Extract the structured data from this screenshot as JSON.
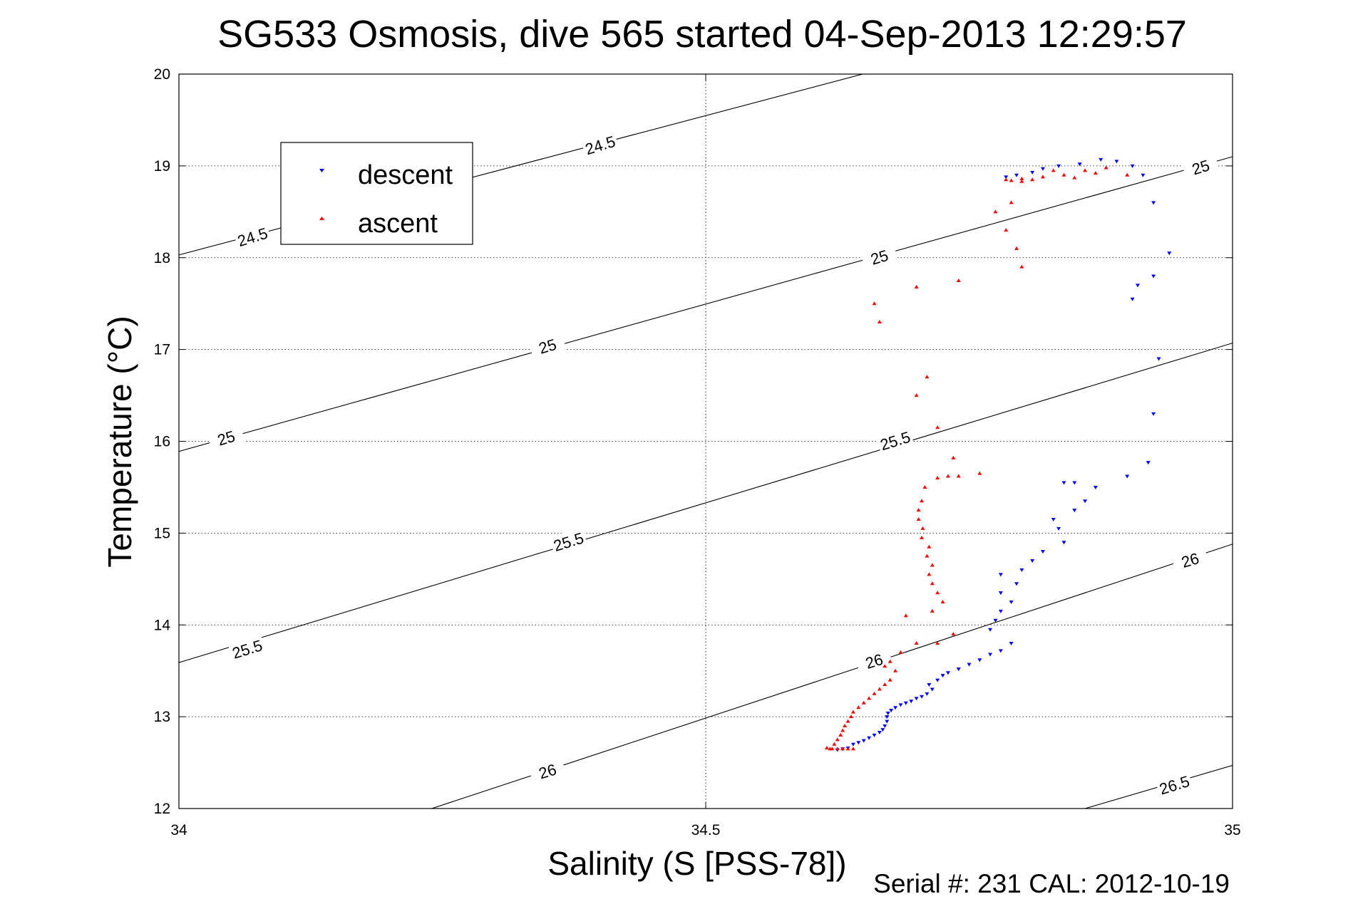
{
  "chart_data": {
    "type": "scatter",
    "title": "SG533 Osmosis, dive 565 started 04-Sep-2013 12:29:57",
    "xlabel": "Salinity (S [PSS-78])",
    "ylabel": "Temperature (°C)",
    "xlim": [
      34,
      35
    ],
    "ylim": [
      12,
      20
    ],
    "xticks": [
      "34",
      "34.5",
      "35"
    ],
    "yticks": [
      "12",
      "13",
      "14",
      "15",
      "16",
      "17",
      "18",
      "19",
      "20"
    ],
    "grid": true,
    "legend_position": "top-left",
    "footer": "Serial #: 231  CAL: 2012-10-19",
    "colors": {
      "descent": "#0000ff",
      "ascent": "#ff0000",
      "contour": "#000000"
    },
    "isopycnals": [
      {
        "label": "24.5",
        "points": [
          [
            34.0,
            18.03
          ],
          [
            34.649,
            20.0
          ]
        ]
      },
      {
        "label": "25",
        "points": [
          [
            34.0,
            15.89
          ],
          [
            35.0,
            19.1
          ]
        ]
      },
      {
        "label": "25.5",
        "points": [
          [
            34.0,
            13.59
          ],
          [
            35.0,
            17.07
          ]
        ]
      },
      {
        "label": "26",
        "points": [
          [
            34.24,
            12.0
          ],
          [
            35.0,
            14.88
          ]
        ]
      },
      {
        "label": "26.5",
        "points": [
          [
            34.86,
            12.0
          ],
          [
            35.0,
            12.47
          ]
        ]
      }
    ],
    "contour_labels": [
      {
        "text": "24.5",
        "x": 34.07,
        "y": 18.22,
        "angle": -17
      },
      {
        "text": "24.5",
        "x": 34.4,
        "y": 19.22,
        "angle": -17
      },
      {
        "text": "25",
        "x": 34.045,
        "y": 16.03,
        "angle": -17
      },
      {
        "text": "25",
        "x": 34.35,
        "y": 17.03,
        "angle": -17
      },
      {
        "text": "25",
        "x": 34.665,
        "y": 18.0,
        "angle": -17
      },
      {
        "text": "25",
        "x": 34.97,
        "y": 18.98,
        "angle": -17
      },
      {
        "text": "25.5",
        "x": 34.065,
        "y": 13.73,
        "angle": -17
      },
      {
        "text": "25.5",
        "x": 34.37,
        "y": 14.9,
        "angle": -17
      },
      {
        "text": "25.5",
        "x": 34.68,
        "y": 16.0,
        "angle": -17
      },
      {
        "text": "26",
        "x": 34.35,
        "y": 12.4,
        "angle": -17
      },
      {
        "text": "26",
        "x": 34.66,
        "y": 13.6,
        "angle": -17
      },
      {
        "text": "26",
        "x": 34.96,
        "y": 14.7,
        "angle": -17
      },
      {
        "text": "26.5",
        "x": 34.945,
        "y": 12.25,
        "angle": -17
      }
    ],
    "series": [
      {
        "name": "descent",
        "marker": "triangle-down",
        "points": [
          [
            34.625,
            12.64
          ],
          [
            34.63,
            12.65
          ],
          [
            34.635,
            12.66
          ],
          [
            34.64,
            12.7
          ],
          [
            34.645,
            12.72
          ],
          [
            34.65,
            12.74
          ],
          [
            34.655,
            12.77
          ],
          [
            34.66,
            12.8
          ],
          [
            34.665,
            12.83
          ],
          [
            34.668,
            12.86
          ],
          [
            34.67,
            12.9
          ],
          [
            34.672,
            12.95
          ],
          [
            34.672,
            13.0
          ],
          [
            34.673,
            13.04
          ],
          [
            34.676,
            13.07
          ],
          [
            34.68,
            13.1
          ],
          [
            34.685,
            13.13
          ],
          [
            34.69,
            13.15
          ],
          [
            34.695,
            13.17
          ],
          [
            34.7,
            13.2
          ],
          [
            34.705,
            13.22
          ],
          [
            34.71,
            13.25
          ],
          [
            34.715,
            13.3
          ],
          [
            34.712,
            13.35
          ],
          [
            34.72,
            13.4
          ],
          [
            34.725,
            13.45
          ],
          [
            34.73,
            13.48
          ],
          [
            34.74,
            13.52
          ],
          [
            34.75,
            13.57
          ],
          [
            34.76,
            13.62
          ],
          [
            34.77,
            13.68
          ],
          [
            34.78,
            13.72
          ],
          [
            34.79,
            13.8
          ],
          [
            34.77,
            13.95
          ],
          [
            34.775,
            14.05
          ],
          [
            34.78,
            14.15
          ],
          [
            34.79,
            14.25
          ],
          [
            34.78,
            14.35
          ],
          [
            34.795,
            14.45
          ],
          [
            34.78,
            14.55
          ],
          [
            34.8,
            14.6
          ],
          [
            34.81,
            14.7
          ],
          [
            34.82,
            14.8
          ],
          [
            34.84,
            14.9
          ],
          [
            34.835,
            15.05
          ],
          [
            34.83,
            15.15
          ],
          [
            34.85,
            15.25
          ],
          [
            34.86,
            15.35
          ],
          [
            34.87,
            15.5
          ],
          [
            34.84,
            15.55
          ],
          [
            34.85,
            15.55
          ],
          [
            34.9,
            15.62
          ],
          [
            34.92,
            15.77
          ],
          [
            34.925,
            16.3
          ],
          [
            34.93,
            16.9
          ],
          [
            34.905,
            17.55
          ],
          [
            34.91,
            17.7
          ],
          [
            34.925,
            17.8
          ],
          [
            34.94,
            18.05
          ],
          [
            34.925,
            18.6
          ],
          [
            34.915,
            18.9
          ],
          [
            34.905,
            19.0
          ],
          [
            34.89,
            19.05
          ],
          [
            34.875,
            19.07
          ],
          [
            34.855,
            19.02
          ],
          [
            34.835,
            19.0
          ],
          [
            34.82,
            18.97
          ],
          [
            34.81,
            18.93
          ],
          [
            34.795,
            18.9
          ],
          [
            34.785,
            18.88
          ]
        ]
      },
      {
        "name": "ascent",
        "marker": "triangle-up",
        "points": [
          [
            34.615,
            12.66
          ],
          [
            34.618,
            12.65
          ],
          [
            34.62,
            12.65
          ],
          [
            34.625,
            12.65
          ],
          [
            34.63,
            12.65
          ],
          [
            34.635,
            12.65
          ],
          [
            34.64,
            12.65
          ],
          [
            34.622,
            12.7
          ],
          [
            34.625,
            12.75
          ],
          [
            34.628,
            12.8
          ],
          [
            34.63,
            12.85
          ],
          [
            34.632,
            12.9
          ],
          [
            34.635,
            12.95
          ],
          [
            34.638,
            13.0
          ],
          [
            34.64,
            13.05
          ],
          [
            34.645,
            13.1
          ],
          [
            34.65,
            13.15
          ],
          [
            34.655,
            13.2
          ],
          [
            34.66,
            13.25
          ],
          [
            34.665,
            13.3
          ],
          [
            34.67,
            13.35
          ],
          [
            34.675,
            13.4
          ],
          [
            34.68,
            13.5
          ],
          [
            34.67,
            13.55
          ],
          [
            34.675,
            13.6
          ],
          [
            34.685,
            13.7
          ],
          [
            34.7,
            13.8
          ],
          [
            34.72,
            13.8
          ],
          [
            34.735,
            13.9
          ],
          [
            34.69,
            14.1
          ],
          [
            34.715,
            14.15
          ],
          [
            34.725,
            14.25
          ],
          [
            34.72,
            14.35
          ],
          [
            34.715,
            14.45
          ],
          [
            34.712,
            14.55
          ],
          [
            34.715,
            14.65
          ],
          [
            34.71,
            14.75
          ],
          [
            34.712,
            14.85
          ],
          [
            34.705,
            14.95
          ],
          [
            34.706,
            15.05
          ],
          [
            34.702,
            15.15
          ],
          [
            34.702,
            15.25
          ],
          [
            34.705,
            15.35
          ],
          [
            34.708,
            15.5
          ],
          [
            34.72,
            15.6
          ],
          [
            34.73,
            15.62
          ],
          [
            34.74,
            15.62
          ],
          [
            34.76,
            15.65
          ],
          [
            34.735,
            15.82
          ],
          [
            34.72,
            16.15
          ],
          [
            34.71,
            16.7
          ],
          [
            34.7,
            16.5
          ],
          [
            34.665,
            17.3
          ],
          [
            34.66,
            17.5
          ],
          [
            34.7,
            17.68
          ],
          [
            34.74,
            17.75
          ],
          [
            34.8,
            17.9
          ],
          [
            34.795,
            18.1
          ],
          [
            34.785,
            18.3
          ],
          [
            34.775,
            18.5
          ],
          [
            34.79,
            18.6
          ],
          [
            34.8,
            18.83
          ],
          [
            34.8,
            18.86
          ],
          [
            34.79,
            18.84
          ],
          [
            34.785,
            18.85
          ],
          [
            34.81,
            18.85
          ],
          [
            34.82,
            18.88
          ],
          [
            34.83,
            18.95
          ],
          [
            34.84,
            18.9
          ],
          [
            34.85,
            18.87
          ],
          [
            34.86,
            18.95
          ],
          [
            34.87,
            18.92
          ],
          [
            34.88,
            18.98
          ],
          [
            34.9,
            18.9
          ]
        ]
      }
    ]
  },
  "legend": {
    "descent_label": "descent",
    "ascent_label": "ascent"
  }
}
